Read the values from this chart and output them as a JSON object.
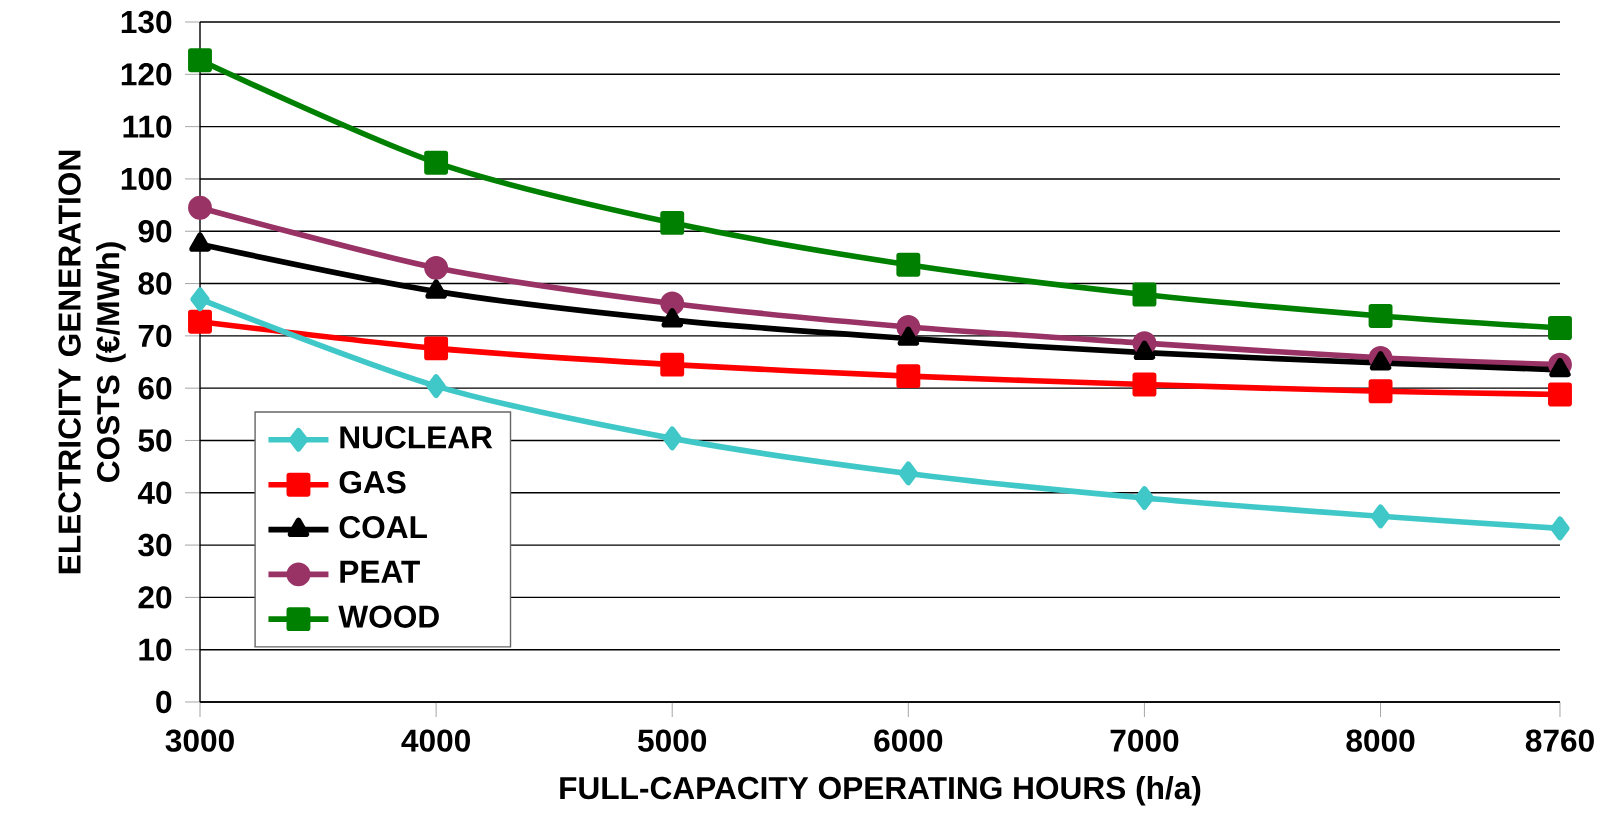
{
  "chart_data": {
    "type": "line",
    "xlabel": "FULL-CAPACITY OPERATING HOURS (h/a)",
    "ylabel": "ELECTRICITY GENERATION COSTS (€/MWh)",
    "x": [
      3000,
      4000,
      5000,
      6000,
      7000,
      8000,
      8760
    ],
    "series": [
      {
        "name": "NUCLEAR",
        "color": "#40c8c8",
        "marker": "diamond",
        "values": [
          77,
          60.4,
          50.4,
          43.7,
          39,
          35.5,
          33.2
        ]
      },
      {
        "name": "GAS",
        "color": "#ff0000",
        "marker": "square",
        "values": [
          72.7,
          67.6,
          64.5,
          62.3,
          60.7,
          59.4,
          58.8
        ]
      },
      {
        "name": "COAL",
        "color": "#000000",
        "marker": "triangle",
        "values": [
          87.5,
          78.5,
          73,
          69.5,
          66.8,
          64.8,
          63.5
        ]
      },
      {
        "name": "PEAT",
        "color": "#993366",
        "marker": "circle",
        "values": [
          94.5,
          83,
          76.2,
          71.7,
          68.6,
          65.8,
          64.5
        ]
      },
      {
        "name": "WOOD",
        "color": "#008000",
        "marker": "square",
        "values": [
          122.7,
          103.1,
          91.6,
          83.6,
          77.9,
          73.8,
          71.5
        ]
      }
    ],
    "xlim": [
      3000,
      8760
    ],
    "xticks": [
      3000,
      4000,
      5000,
      6000,
      7000,
      8000,
      8760
    ],
    "ylim": [
      0,
      130
    ],
    "yticks": [
      0,
      10,
      20,
      30,
      40,
      50,
      60,
      70,
      80,
      90,
      100,
      110,
      120,
      130
    ],
    "grid": "y",
    "legend": "bottom left"
  }
}
